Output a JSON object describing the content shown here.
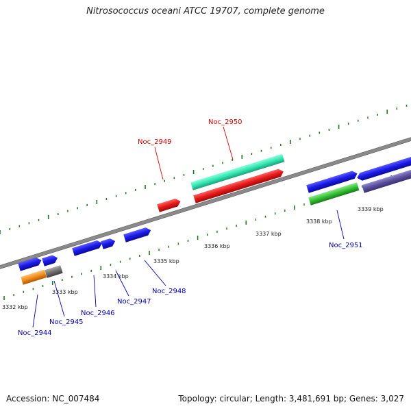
{
  "title": "Nitrosococcus oceani ATCC 19707, complete genome",
  "footer": {
    "accession": "Accession: NC_007484",
    "summary": "Topology: circular; Length: 3,481,691 bp; Genes: 3,027"
  },
  "scale_labels": [
    "3332 kbp",
    "3333 kbp",
    "3334 kbp",
    "3335 kbp",
    "3336 kbp",
    "3337 kbp",
    "3338 kbp",
    "3339 kbp"
  ],
  "gene_labels": {
    "noc_2944": "Noc_2944",
    "noc_2945": "Noc_2945",
    "noc_2946": "Noc_2946",
    "noc_2947": "Noc_2947",
    "noc_2948": "Noc_2948",
    "noc_2949": "Noc_2949",
    "noc_2950": "Noc_2950",
    "noc_2951": "Noc_2951"
  },
  "colors": {
    "backbone": "#808080",
    "gene_blue": "#1a1ae6",
    "gene_red": "#e61a1a",
    "gene_teal": "#33e6b3",
    "gene_green": "#33c233",
    "gene_orange": "#f08c1a",
    "gene_gray": "#707070",
    "gene_slate": "#5c4f9e",
    "tick_green": "#1a7a1a",
    "label_red": "#d40000",
    "label_blue": "#0000b4"
  }
}
